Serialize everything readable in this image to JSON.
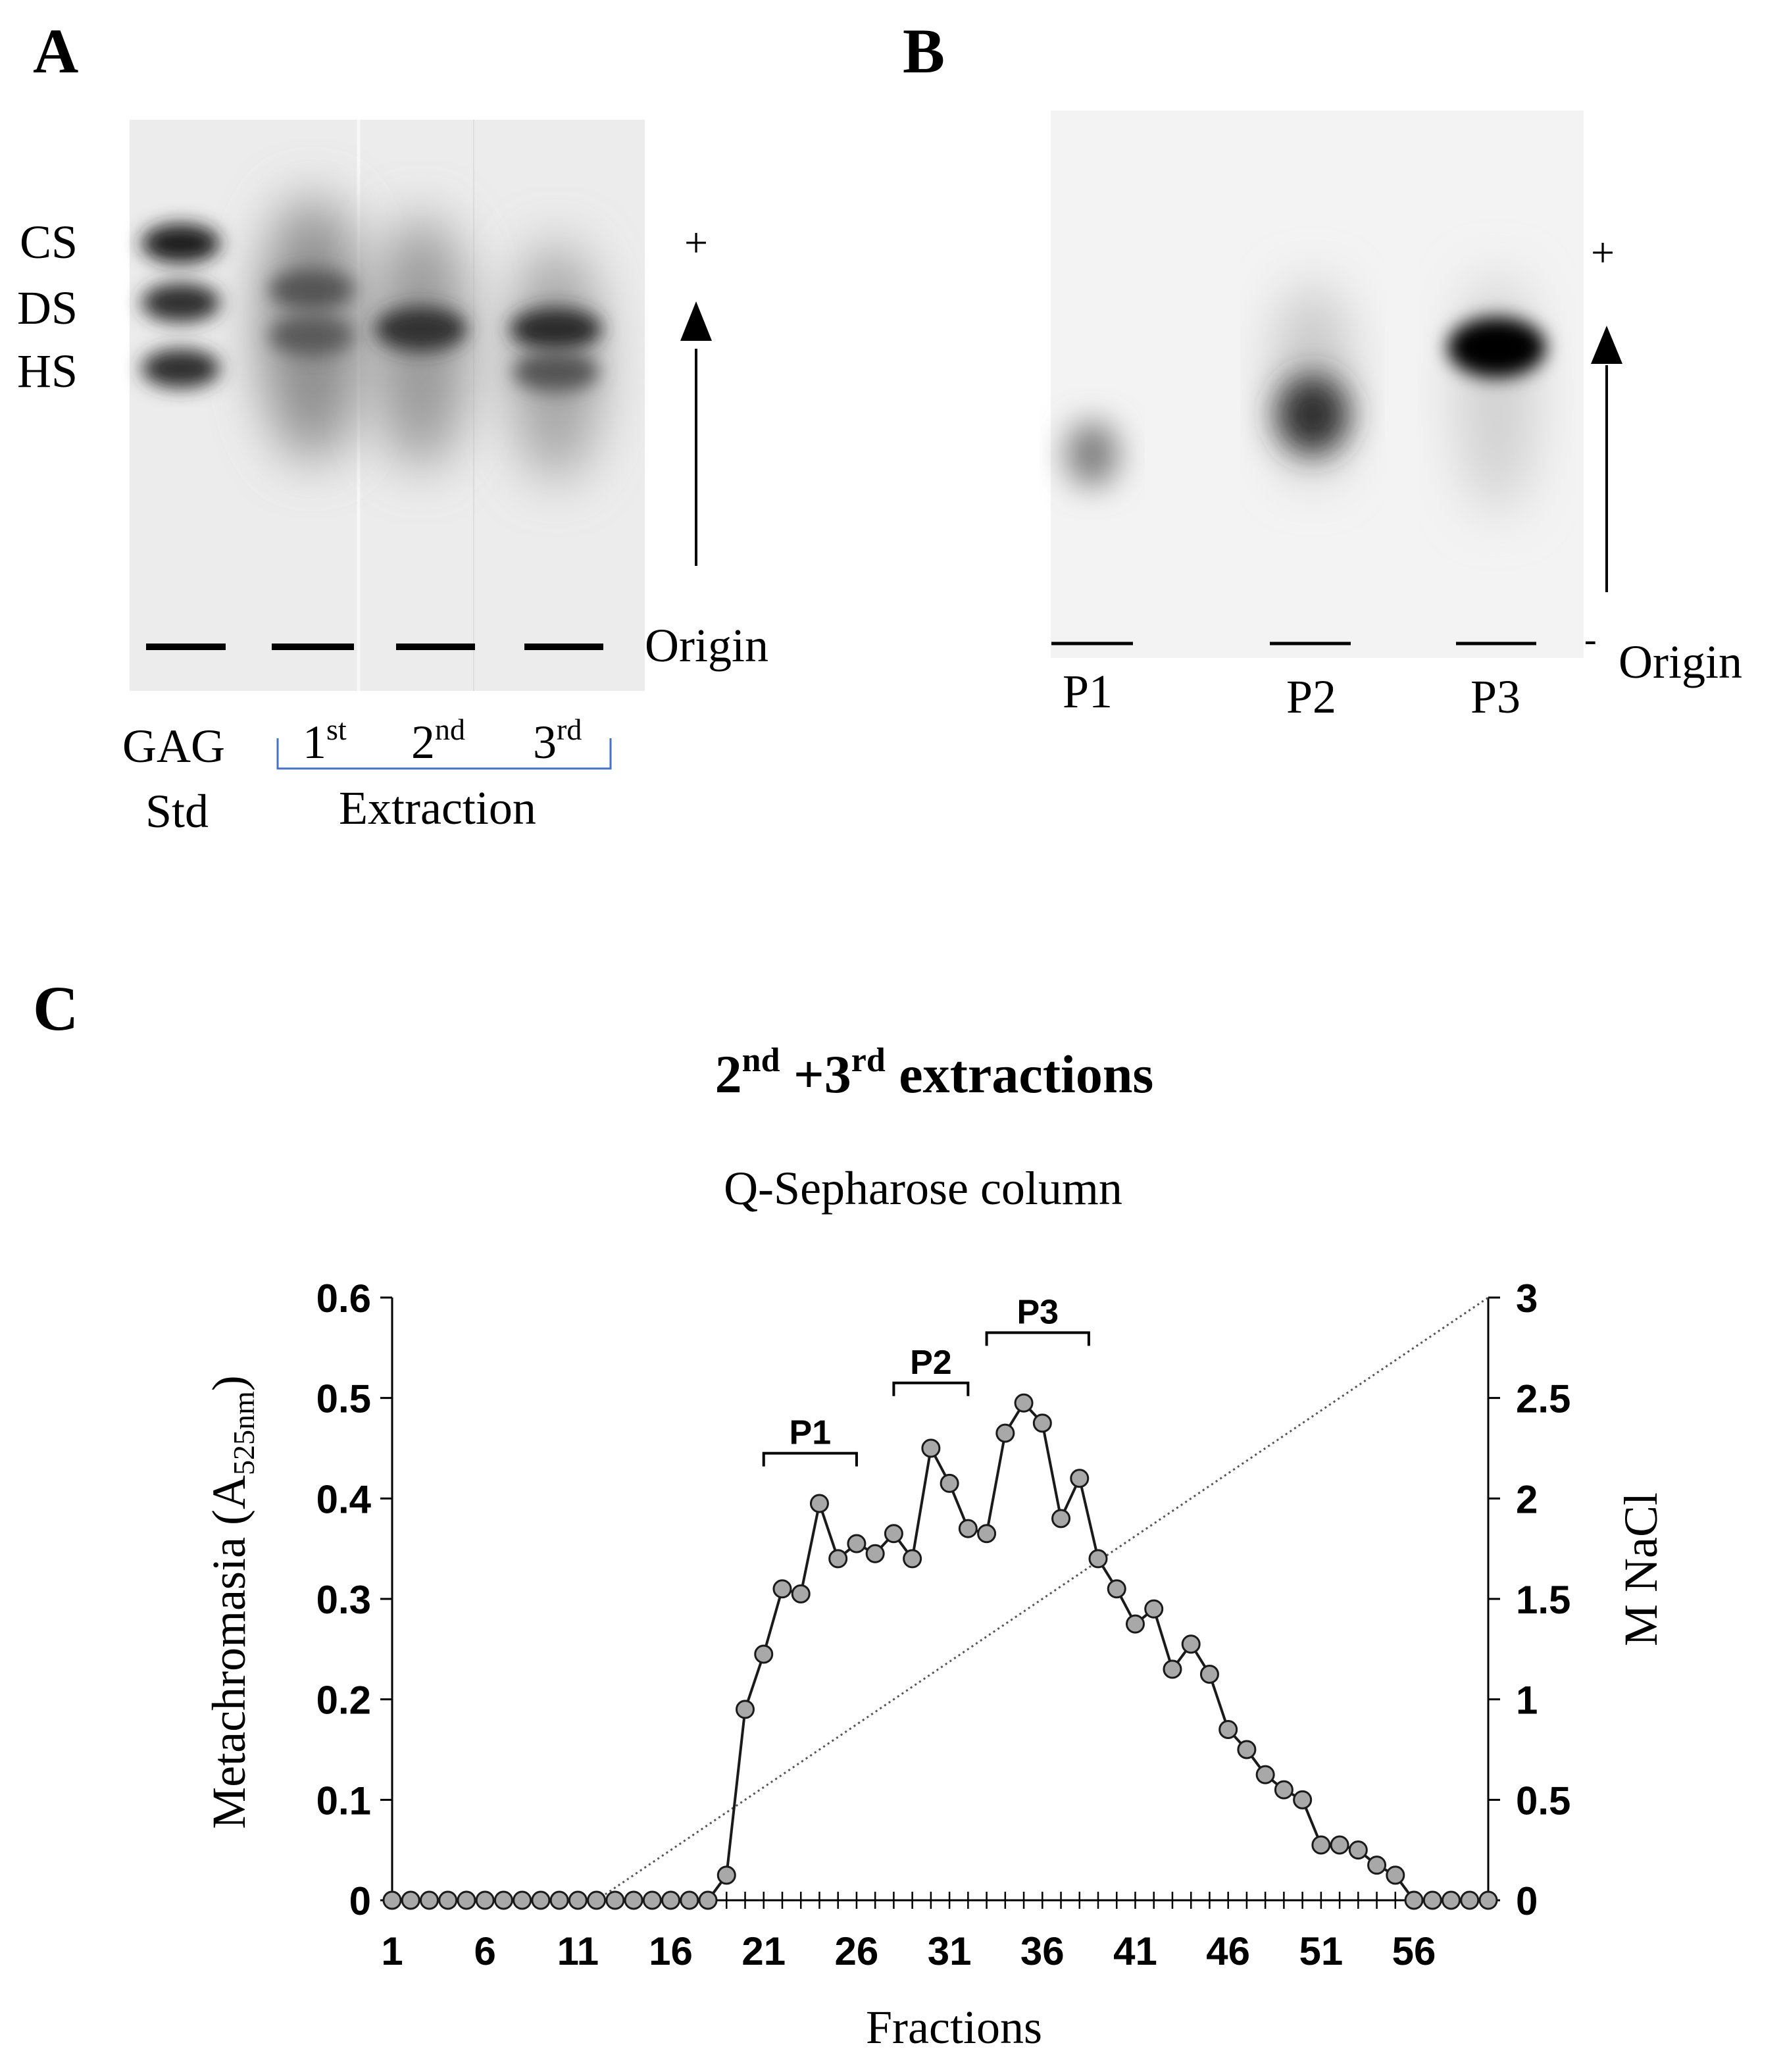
{
  "panel_a": {
    "letter": "A",
    "band_labels": [
      "CS",
      "DS",
      "HS"
    ],
    "plus_sign": "+",
    "origin_label": "Origin",
    "lane_gag": "GAG",
    "lane_std": "Std",
    "ext1_num": "1",
    "ext1_sup": "st",
    "ext2_num": "2",
    "ext2_sup": "nd",
    "ext3_num": "3",
    "ext3_sup": "rd",
    "extraction_label": "Extraction",
    "bracket_color": "#4472c4"
  },
  "panel_b": {
    "letter": "B",
    "plus_sign": "+",
    "minus_sign": "-",
    "origin_label": "Origin",
    "lanes": [
      "P1",
      "P2",
      "P3"
    ]
  },
  "panel_c": {
    "letter": "C",
    "title_num2": "2",
    "title_sup2": "nd",
    "title_mid": " +3",
    "title_sup3": "rd",
    "title_end": " extractions",
    "subtitle": "Q-Sepharose column"
  },
  "chart_data": {
    "type": "line",
    "title": "2nd +3rd extractions",
    "subtitle": "Q-Sepharose column",
    "xlabel": "Fractions",
    "ylabel_main": "Metachromasia (A",
    "ylabel_sub": "525nm",
    "ylabel_close": ")",
    "y2label": "M NaCl",
    "xlim": [
      1,
      60
    ],
    "ylim": [
      0,
      0.6
    ],
    "y2lim": [
      0,
      3
    ],
    "x_ticks": [
      1,
      6,
      11,
      16,
      21,
      26,
      31,
      36,
      41,
      46,
      51,
      56
    ],
    "x_tick_labels": [
      "1",
      "6",
      "11",
      "16",
      "21",
      "26",
      "31",
      "36",
      "41",
      "46",
      "51",
      "56"
    ],
    "y_ticks": [
      0,
      0.1,
      0.2,
      0.3,
      0.4,
      0.5,
      0.6
    ],
    "y_tick_labels": [
      "0",
      "0.1",
      "0.2",
      "0.3",
      "0.4",
      "0.5",
      "0.6"
    ],
    "y2_ticks": [
      0,
      0.5,
      1,
      1.5,
      2,
      2.5,
      3
    ],
    "y2_tick_labels": [
      "0",
      "0.5",
      "1",
      "1.5",
      "2",
      "2.5",
      "3"
    ],
    "series": [
      {
        "name": "Metachromasia",
        "axis": "left",
        "x": [
          1,
          2,
          3,
          4,
          5,
          6,
          7,
          8,
          9,
          10,
          11,
          12,
          13,
          14,
          15,
          16,
          17,
          18,
          19,
          20,
          21,
          22,
          23,
          24,
          25,
          26,
          27,
          28,
          29,
          30,
          31,
          32,
          33,
          34,
          35,
          36,
          37,
          38,
          39,
          40,
          41,
          42,
          43,
          44,
          45,
          46,
          47,
          48,
          49,
          50,
          51,
          52,
          53,
          54,
          55,
          56,
          57,
          58,
          59,
          60
        ],
        "values": [
          0,
          0,
          0,
          0,
          0,
          0,
          0,
          0,
          0,
          0,
          0,
          0,
          0,
          0,
          0,
          0,
          0,
          0,
          0.025,
          0.19,
          0.245,
          0.31,
          0.305,
          0.395,
          0.34,
          0.355,
          0.345,
          0.365,
          0.34,
          0.45,
          0.415,
          0.37,
          0.365,
          0.465,
          0.495,
          0.475,
          0.38,
          0.42,
          0.34,
          0.31,
          0.275,
          0.29,
          0.23,
          0.255,
          0.225,
          0.17,
          0.15,
          0.125,
          0.11,
          0.1,
          0.055,
          0.055,
          0.05,
          0.035,
          0.025,
          0,
          0,
          0,
          0,
          0
        ]
      },
      {
        "name": "NaCl gradient",
        "axis": "right",
        "style": "dotted",
        "x": [
          12,
          60
        ],
        "values": [
          0,
          3
        ]
      }
    ],
    "annotations": [
      {
        "label": "P1",
        "from": 21,
        "to": 26,
        "y": 0.445
      },
      {
        "label": "P2",
        "from": 28,
        "to": 32,
        "y": 0.515
      },
      {
        "label": "P3",
        "from": 33,
        "to": 38.5,
        "y": 0.565
      }
    ]
  }
}
